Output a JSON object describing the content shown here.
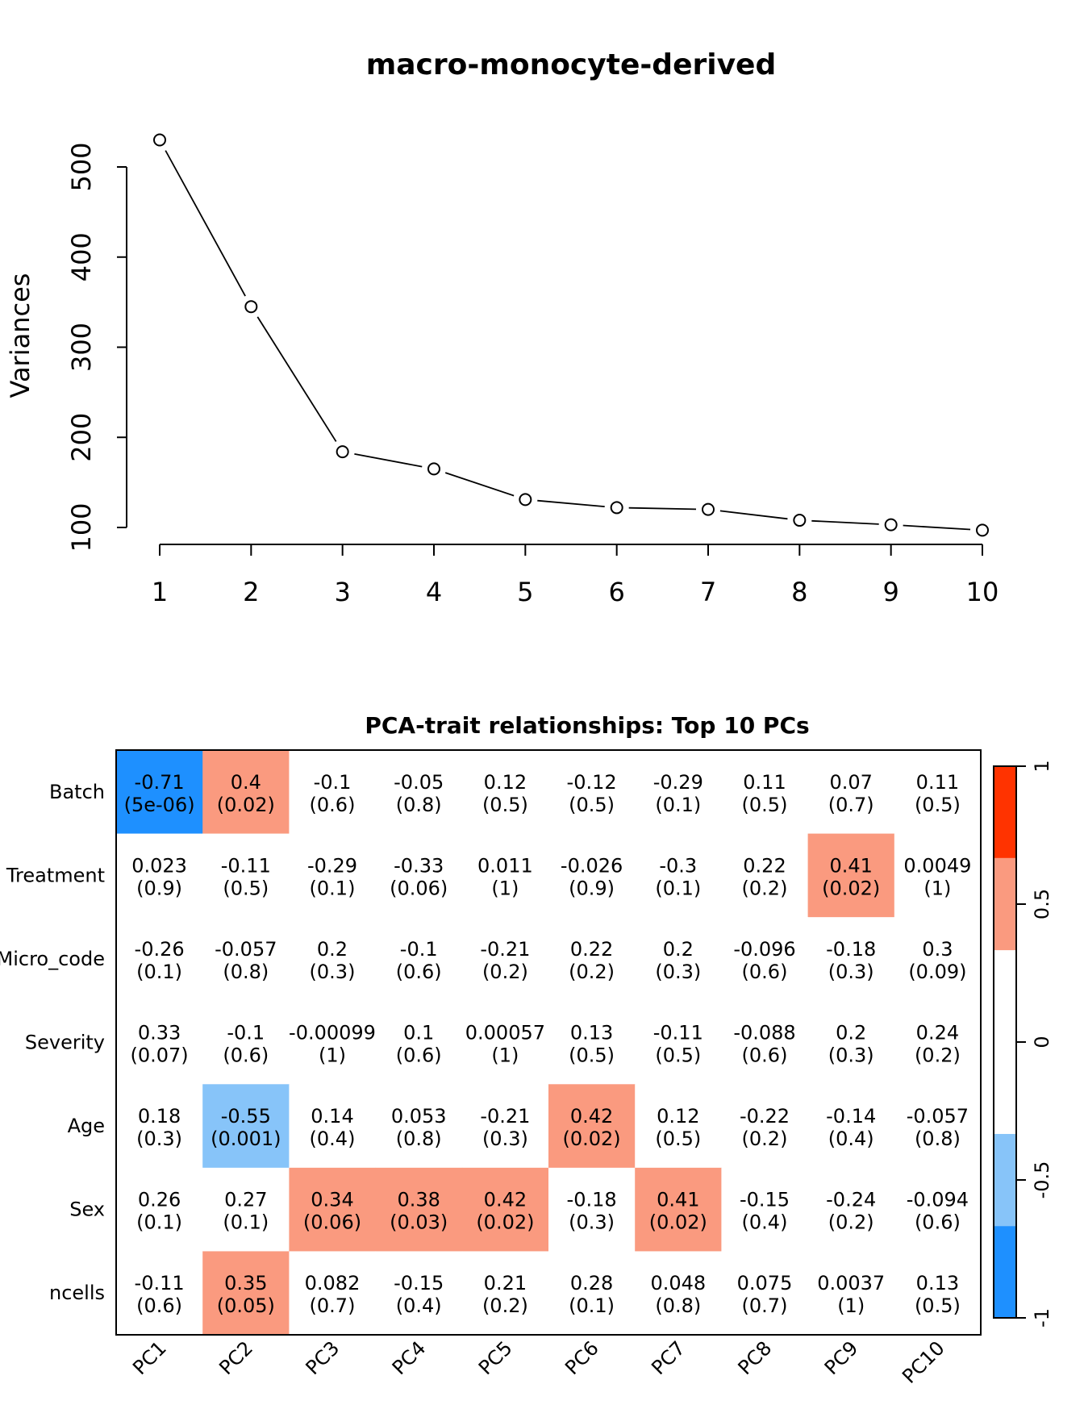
{
  "chart_data": [
    {
      "type": "line",
      "title": "macro-monocyte-derived",
      "xlabel": "",
      "ylabel": "Variances",
      "x": [
        1,
        2,
        3,
        4,
        5,
        6,
        7,
        8,
        9,
        10
      ],
      "xticks": [
        "1",
        "2",
        "3",
        "4",
        "5",
        "6",
        "7",
        "8",
        "9",
        "10"
      ],
      "yticks": [
        "100",
        "200",
        "300",
        "400",
        "500"
      ],
      "values": [
        530,
        345,
        184,
        165,
        131,
        122,
        120,
        108,
        103,
        97
      ],
      "xlim": [
        1,
        10
      ],
      "ylim": [
        100,
        500
      ]
    },
    {
      "type": "heatmap",
      "title": "PCA-trait relationships: Top 10 PCs",
      "columns": [
        "PC1",
        "PC2",
        "PC3",
        "PC4",
        "PC5",
        "PC6",
        "PC7",
        "PC8",
        "PC9",
        "PC10"
      ],
      "rows": [
        "Batch",
        "Treatment",
        "Micro_code",
        "Severity",
        "Age",
        "Sex",
        "ncells"
      ],
      "cells": [
        [
          [
            "-0.71",
            "(5e-06)",
            -0.71
          ],
          [
            "0.4",
            "(0.02)",
            0.4
          ],
          [
            "-0.1",
            "(0.6)",
            -0.1
          ],
          [
            "-0.05",
            "(0.8)",
            -0.05
          ],
          [
            "0.12",
            "(0.5)",
            0.12
          ],
          [
            "-0.12",
            "(0.5)",
            -0.12
          ],
          [
            "-0.29",
            "(0.1)",
            -0.29
          ],
          [
            "0.11",
            "(0.5)",
            0.11
          ],
          [
            "0.07",
            "(0.7)",
            0.07
          ],
          [
            "0.11",
            "(0.5)",
            0.11
          ]
        ],
        [
          [
            "0.023",
            "(0.9)",
            0.023
          ],
          [
            "-0.11",
            "(0.5)",
            -0.11
          ],
          [
            "-0.29",
            "(0.1)",
            -0.29
          ],
          [
            "-0.33",
            "(0.06)",
            -0.33
          ],
          [
            "0.011",
            "(1)",
            0.011
          ],
          [
            "-0.026",
            "(0.9)",
            -0.026
          ],
          [
            "-0.3",
            "(0.1)",
            -0.3
          ],
          [
            "0.22",
            "(0.2)",
            0.22
          ],
          [
            "0.41",
            "(0.02)",
            0.41
          ],
          [
            "0.0049",
            "(1)",
            0.0049
          ]
        ],
        [
          [
            "-0.26",
            "(0.1)",
            -0.26
          ],
          [
            "-0.057",
            "(0.8)",
            -0.057
          ],
          [
            "0.2",
            "(0.3)",
            0.2
          ],
          [
            "-0.1",
            "(0.6)",
            -0.1
          ],
          [
            "-0.21",
            "(0.2)",
            -0.21
          ],
          [
            "0.22",
            "(0.2)",
            0.22
          ],
          [
            "0.2",
            "(0.3)",
            0.2
          ],
          [
            "-0.096",
            "(0.6)",
            -0.096
          ],
          [
            "-0.18",
            "(0.3)",
            -0.18
          ],
          [
            "0.3",
            "(0.09)",
            0.3
          ]
        ],
        [
          [
            "0.33",
            "(0.07)",
            0.33
          ],
          [
            "-0.1",
            "(0.6)",
            -0.1
          ],
          [
            "-0.00099",
            "(1)",
            -0.00099
          ],
          [
            "0.1",
            "(0.6)",
            0.1
          ],
          [
            "0.00057",
            "(1)",
            0.00057
          ],
          [
            "0.13",
            "(0.5)",
            0.13
          ],
          [
            "-0.11",
            "(0.5)",
            -0.11
          ],
          [
            "-0.088",
            "(0.6)",
            -0.088
          ],
          [
            "0.2",
            "(0.3)",
            0.2
          ],
          [
            "0.24",
            "(0.2)",
            0.24
          ]
        ],
        [
          [
            "0.18",
            "(0.3)",
            0.18
          ],
          [
            "-0.55",
            "(0.001)",
            -0.55
          ],
          [
            "0.14",
            "(0.4)",
            0.14
          ],
          [
            "0.053",
            "(0.8)",
            0.053
          ],
          [
            "-0.21",
            "(0.3)",
            -0.21
          ],
          [
            "0.42",
            "(0.02)",
            0.42
          ],
          [
            "0.12",
            "(0.5)",
            0.12
          ],
          [
            "-0.22",
            "(0.2)",
            -0.22
          ],
          [
            "-0.14",
            "(0.4)",
            -0.14
          ],
          [
            "-0.057",
            "(0.8)",
            -0.057
          ]
        ],
        [
          [
            "0.26",
            "(0.1)",
            0.26
          ],
          [
            "0.27",
            "(0.1)",
            0.27
          ],
          [
            "0.34",
            "(0.06)",
            0.34
          ],
          [
            "0.38",
            "(0.03)",
            0.38
          ],
          [
            "0.42",
            "(0.02)",
            0.42
          ],
          [
            "-0.18",
            "(0.3)",
            -0.18
          ],
          [
            "0.41",
            "(0.02)",
            0.41
          ],
          [
            "-0.15",
            "(0.4)",
            -0.15
          ],
          [
            "-0.24",
            "(0.2)",
            -0.24
          ],
          [
            "-0.094",
            "(0.6)",
            -0.094
          ]
        ],
        [
          [
            "-0.11",
            "(0.6)",
            -0.11
          ],
          [
            "0.35",
            "(0.05)",
            0.35
          ],
          [
            "0.082",
            "(0.7)",
            0.082
          ],
          [
            "-0.15",
            "(0.4)",
            -0.15
          ],
          [
            "0.21",
            "(0.2)",
            0.21
          ],
          [
            "0.28",
            "(0.1)",
            0.28
          ],
          [
            "0.048",
            "(0.8)",
            0.048
          ],
          [
            "0.075",
            "(0.7)",
            0.075
          ],
          [
            "0.0037",
            "(1)",
            0.0037
          ],
          [
            "0.13",
            "(0.5)",
            0.13
          ]
        ]
      ],
      "colorbar": {
        "ticks": [
          "-1",
          "-0.5",
          "0",
          "0.5",
          "1"
        ],
        "range": [
          -1,
          1
        ],
        "bands": [
          {
            "from": -1,
            "to": -0.667,
            "color": "#1e90ff"
          },
          {
            "from": -0.667,
            "to": -0.333,
            "color": "#87c4f9"
          },
          {
            "from": -0.333,
            "to": 0.333,
            "color": "#ffffff"
          },
          {
            "from": 0.333,
            "to": 0.667,
            "color": "#fa9a7f"
          },
          {
            "from": 0.667,
            "to": 1,
            "color": "#ff3300"
          }
        ]
      }
    }
  ]
}
